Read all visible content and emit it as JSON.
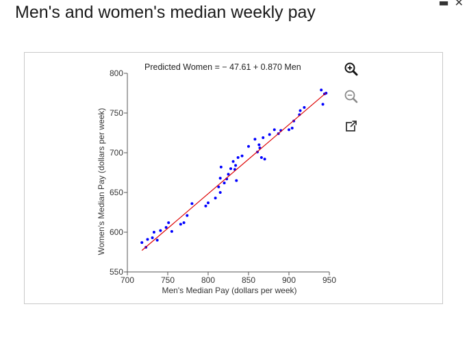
{
  "page": {
    "title": "Men's and women's median weekly pay"
  },
  "toolbar": {
    "zoom_in_icon": "zoom-in-icon",
    "zoom_out_icon": "zoom-out-icon",
    "popout_icon": "external-link-icon"
  },
  "window": {
    "minimize_glyph": "▬",
    "close_glyph": "✕"
  },
  "chart_data": {
    "type": "scatter",
    "title": "",
    "equation": "Predicted Women  =   − 47.61 + 0.870 Men",
    "xlabel": "Men's Median Pay (dollars per week)",
    "ylabel": "Women's Median Pay (dollars per week)",
    "xlim": [
      700,
      950
    ],
    "ylim": [
      550,
      800
    ],
    "x_ticks": [
      700,
      750,
      800,
      850,
      900,
      950
    ],
    "y_ticks": [
      550,
      600,
      650,
      700,
      750,
      800
    ],
    "grid": false,
    "point_color": "#0000ff",
    "line_color": "#dd0000",
    "regression": {
      "intercept": -47.61,
      "slope": 0.87,
      "x_range": [
        718,
        946
      ]
    },
    "points": [
      [
        718,
        587
      ],
      [
        723,
        581
      ],
      [
        725,
        591
      ],
      [
        731,
        593
      ],
      [
        733,
        600
      ],
      [
        737,
        590
      ],
      [
        741,
        602
      ],
      [
        748,
        606
      ],
      [
        751,
        612
      ],
      [
        755,
        601
      ],
      [
        766,
        610
      ],
      [
        770,
        612
      ],
      [
        774,
        621
      ],
      [
        780,
        636
      ],
      [
        797,
        633
      ],
      [
        800,
        637
      ],
      [
        809,
        643
      ],
      [
        813,
        657
      ],
      [
        815,
        650
      ],
      [
        815,
        668
      ],
      [
        816,
        682
      ],
      [
        820,
        662
      ],
      [
        823,
        667
      ],
      [
        825,
        673
      ],
      [
        828,
        680
      ],
      [
        831,
        689
      ],
      [
        833,
        679
      ],
      [
        834,
        684
      ],
      [
        835,
        665
      ],
      [
        837,
        694
      ],
      [
        842,
        696
      ],
      [
        850,
        708
      ],
      [
        858,
        717
      ],
      [
        861,
        701
      ],
      [
        863,
        710
      ],
      [
        864,
        706
      ],
      [
        866,
        694
      ],
      [
        868,
        719
      ],
      [
        870,
        692
      ],
      [
        876,
        723
      ],
      [
        882,
        729
      ],
      [
        887,
        724
      ],
      [
        890,
        728
      ],
      [
        900,
        729
      ],
      [
        904,
        731
      ],
      [
        906,
        740
      ],
      [
        913,
        748
      ],
      [
        914,
        753
      ],
      [
        919,
        757
      ],
      [
        940,
        779
      ],
      [
        942,
        761
      ],
      [
        944,
        774
      ],
      [
        946,
        775
      ]
    ]
  }
}
